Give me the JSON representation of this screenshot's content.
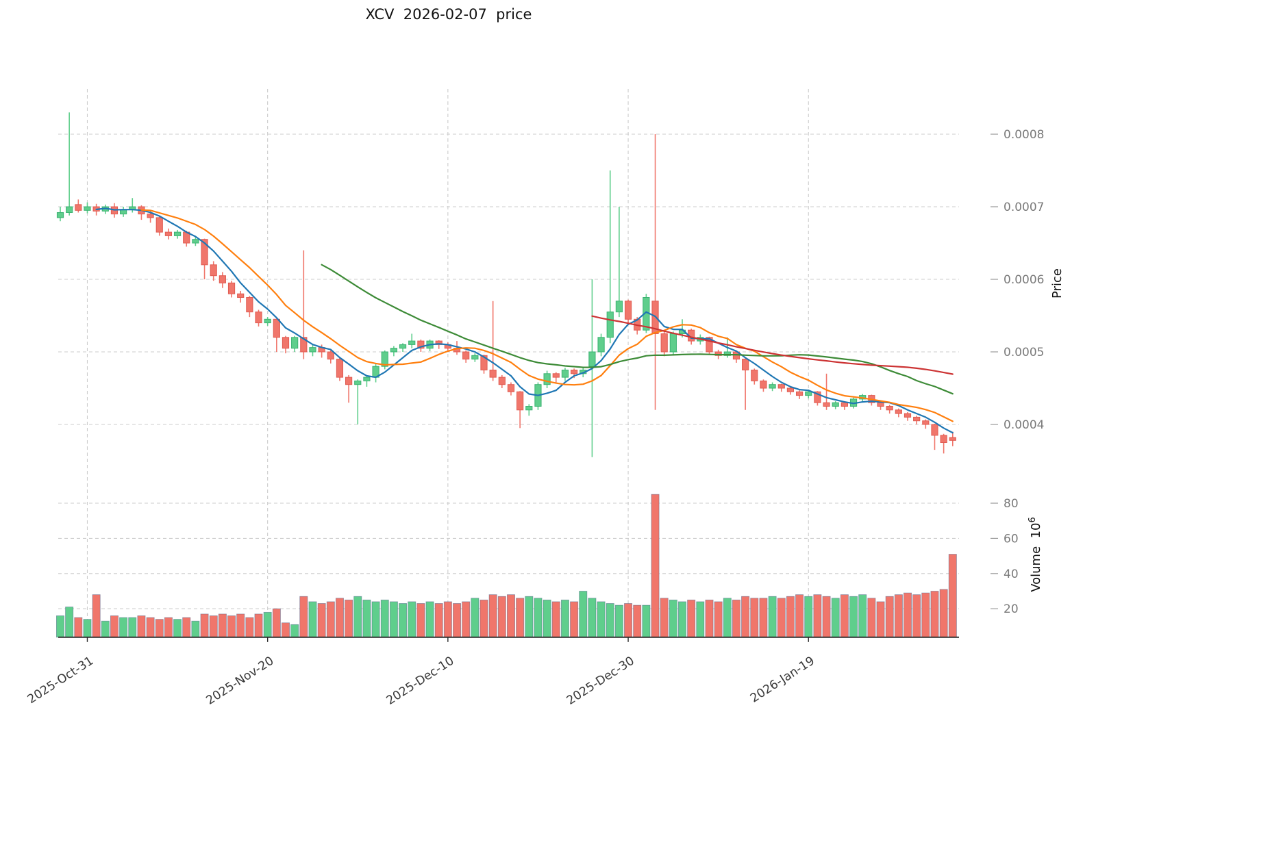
{
  "title": "XCV  2026-02-07  price",
  "chart_data": {
    "type": "candlestick",
    "title": "XCV  2026-02-07  price",
    "panels": [
      "price",
      "volume"
    ],
    "x_axis": {
      "tick_labels": [
        "2025-Oct-31",
        "2025-Nov-20",
        "2025-Dec-10",
        "2025-Dec-30",
        "2026-Jan-19"
      ],
      "tick_indices": [
        3,
        23,
        43,
        63,
        83
      ]
    },
    "price_axis": {
      "label": "Price",
      "ticks": [
        0.0004,
        0.0005,
        0.0006,
        0.0007,
        0.0008
      ],
      "tick_labels": [
        "0.0004",
        "0.0005",
        "0.0006",
        "0.0007",
        "0.0008"
      ],
      "range": [
        0.000345,
        0.00086
      ]
    },
    "volume_axis": {
      "label_main": "Volume  10",
      "label_exp": "6",
      "unit": "millions",
      "ticks": [
        20,
        40,
        60,
        80
      ],
      "tick_labels": [
        "20",
        "40",
        "60",
        "80"
      ],
      "range": [
        0,
        90
      ]
    },
    "colors": {
      "up": "#5fce8c",
      "down": "#f0766b",
      "up_edge": "#3bb271",
      "down_edge": "#e05c52",
      "volume_edge": "#4a6087",
      "grid": "#cccccc",
      "axis_line": "#2b2b2b"
    },
    "moving_averages": [
      {
        "name": "MA5",
        "window": 5,
        "color": "#1f77b4"
      },
      {
        "name": "MA10",
        "window": 10,
        "color": "#ff7f0e"
      },
      {
        "name": "MA30",
        "window": 30,
        "color": "#3d8b37"
      },
      {
        "name": "MA60",
        "window": 60,
        "color": "#cc3333"
      }
    ],
    "candles": {
      "format": [
        "open",
        "high",
        "low",
        "close",
        "volume_millions"
      ],
      "rows": [
        [
          0.000685,
          0.0007,
          0.00068,
          0.000692,
          16
        ],
        [
          0.000692,
          0.00083,
          0.000688,
          0.0007,
          21
        ],
        [
          0.000703,
          0.00071,
          0.000692,
          0.000695,
          15
        ],
        [
          0.000695,
          0.000706,
          0.000691,
          0.0007,
          14
        ],
        [
          0.0007,
          0.000704,
          0.000688,
          0.000694,
          28
        ],
        [
          0.000694,
          0.000703,
          0.00069,
          0.0007,
          13
        ],
        [
          0.0007,
          0.000705,
          0.000685,
          0.00069,
          16
        ],
        [
          0.00069,
          0.0007,
          0.000686,
          0.000696,
          15
        ],
        [
          0.000696,
          0.000712,
          0.000692,
          0.0007,
          15
        ],
        [
          0.0007,
          0.000702,
          0.000682,
          0.00069,
          16
        ],
        [
          0.00069,
          0.000694,
          0.000678,
          0.000685,
          15
        ],
        [
          0.000685,
          0.000687,
          0.00066,
          0.000665,
          14
        ],
        [
          0.000665,
          0.00067,
          0.000655,
          0.00066,
          15
        ],
        [
          0.00066,
          0.000668,
          0.000656,
          0.000665,
          14
        ],
        [
          0.000665,
          0.000667,
          0.000645,
          0.00065,
          15
        ],
        [
          0.00065,
          0.000658,
          0.000646,
          0.000655,
          13
        ],
        [
          0.000655,
          0.000656,
          0.0006,
          0.00062,
          17
        ],
        [
          0.00062,
          0.000625,
          0.000598,
          0.000605,
          16
        ],
        [
          0.000605,
          0.00061,
          0.000588,
          0.000595,
          17
        ],
        [
          0.000595,
          0.000598,
          0.000575,
          0.00058,
          16
        ],
        [
          0.00058,
          0.000584,
          0.000568,
          0.000575,
          17
        ],
        [
          0.000575,
          0.000577,
          0.000548,
          0.000555,
          15
        ],
        [
          0.000555,
          0.000558,
          0.000535,
          0.00054,
          17
        ],
        [
          0.00054,
          0.000548,
          0.000536,
          0.000545,
          18
        ],
        [
          0.000545,
          0.000546,
          0.0005,
          0.00052,
          20
        ],
        [
          0.00052,
          0.000522,
          0.000498,
          0.000505,
          12
        ],
        [
          0.000505,
          0.000522,
          0.0005,
          0.00052,
          11
        ],
        [
          0.00052,
          0.00064,
          0.00049,
          0.0005,
          27
        ],
        [
          0.0005,
          0.00051,
          0.000494,
          0.000506,
          24
        ],
        [
          0.000506,
          0.00051,
          0.000492,
          0.0005,
          23
        ],
        [
          0.0005,
          0.000502,
          0.000484,
          0.00049,
          24
        ],
        [
          0.00049,
          0.000492,
          0.00046,
          0.000465,
          26
        ],
        [
          0.000465,
          0.000468,
          0.00043,
          0.000455,
          25
        ],
        [
          0.000455,
          0.000462,
          0.0004,
          0.00046,
          27
        ],
        [
          0.00046,
          0.000468,
          0.000452,
          0.000465,
          25
        ],
        [
          0.000465,
          0.000484,
          0.000458,
          0.00048,
          24
        ],
        [
          0.00048,
          0.000502,
          0.000476,
          0.0005,
          25
        ],
        [
          0.0005,
          0.000508,
          0.000494,
          0.000505,
          24
        ],
        [
          0.000505,
          0.000512,
          0.0005,
          0.00051,
          23
        ],
        [
          0.00051,
          0.000525,
          0.000505,
          0.000515,
          24
        ],
        [
          0.000515,
          0.000517,
          0.0005,
          0.000505,
          23
        ],
        [
          0.000505,
          0.000517,
          0.000501,
          0.000515,
          24
        ],
        [
          0.000515,
          0.000516,
          0.000504,
          0.00051,
          23
        ],
        [
          0.00051,
          0.000513,
          0.0005,
          0.000505,
          24
        ],
        [
          0.000505,
          0.000515,
          0.000496,
          0.0005,
          23
        ],
        [
          0.0005,
          0.000502,
          0.000485,
          0.00049,
          24
        ],
        [
          0.00049,
          0.000498,
          0.000486,
          0.000495,
          26
        ],
        [
          0.000495,
          0.000496,
          0.00047,
          0.000475,
          25
        ],
        [
          0.000475,
          0.00057,
          0.00046,
          0.000465,
          28
        ],
        [
          0.000465,
          0.000468,
          0.00045,
          0.000455,
          27
        ],
        [
          0.000455,
          0.000458,
          0.00044,
          0.000445,
          28
        ],
        [
          0.000445,
          0.000446,
          0.000395,
          0.00042,
          26
        ],
        [
          0.00042,
          0.000428,
          0.000412,
          0.000425,
          27
        ],
        [
          0.000425,
          0.000458,
          0.00042,
          0.000455,
          26
        ],
        [
          0.000455,
          0.000474,
          0.00045,
          0.00047,
          25
        ],
        [
          0.00047,
          0.000472,
          0.000458,
          0.000465,
          24
        ],
        [
          0.000465,
          0.000478,
          0.00046,
          0.000475,
          25
        ],
        [
          0.000475,
          0.000477,
          0.000464,
          0.00047,
          24
        ],
        [
          0.00047,
          0.000478,
          0.000465,
          0.000475,
          30
        ],
        [
          0.00048,
          0.0006,
          0.000355,
          0.0005,
          26
        ],
        [
          0.0005,
          0.000525,
          0.000494,
          0.00052,
          24
        ],
        [
          0.00052,
          0.00075,
          0.000512,
          0.000555,
          23
        ],
        [
          0.000555,
          0.0007,
          0.000548,
          0.00057,
          22
        ],
        [
          0.00057,
          0.000572,
          0.000538,
          0.000545,
          23
        ],
        [
          0.000545,
          0.000548,
          0.000524,
          0.00053,
          22
        ],
        [
          0.00053,
          0.00058,
          0.000526,
          0.000575,
          22
        ],
        [
          0.00057,
          0.0008,
          0.00042,
          0.000525,
          85
        ],
        [
          0.000525,
          0.000528,
          0.000494,
          0.0005,
          26
        ],
        [
          0.0005,
          0.000528,
          0.000496,
          0.000525,
          25
        ],
        [
          0.000525,
          0.000545,
          0.00052,
          0.00053,
          24
        ],
        [
          0.00053,
          0.000532,
          0.00051,
          0.000515,
          25
        ],
        [
          0.000515,
          0.000524,
          0.00051,
          0.00052,
          24
        ],
        [
          0.00052,
          0.000521,
          0.000496,
          0.0005,
          25
        ],
        [
          0.0005,
          0.000503,
          0.00049,
          0.000495,
          24
        ],
        [
          0.000495,
          0.00052,
          0.000492,
          0.0005,
          26
        ],
        [
          0.0005,
          0.000502,
          0.000485,
          0.00049,
          25
        ],
        [
          0.00049,
          0.000491,
          0.00042,
          0.000475,
          27
        ],
        [
          0.000475,
          0.000477,
          0.000455,
          0.00046,
          26
        ],
        [
          0.00046,
          0.000462,
          0.000445,
          0.00045,
          26
        ],
        [
          0.00045,
          0.000458,
          0.000446,
          0.000455,
          27
        ],
        [
          0.000455,
          0.000456,
          0.000445,
          0.00045,
          26
        ],
        [
          0.00045,
          0.000452,
          0.000441,
          0.000445,
          27
        ],
        [
          0.000445,
          0.000447,
          0.000435,
          0.00044,
          28
        ],
        [
          0.00044,
          0.000448,
          0.000436,
          0.000445,
          27
        ],
        [
          0.000445,
          0.000446,
          0.000426,
          0.00043,
          28
        ],
        [
          0.00043,
          0.00047,
          0.00042,
          0.000425,
          27
        ],
        [
          0.000425,
          0.000432,
          0.000421,
          0.00043,
          26
        ],
        [
          0.00043,
          0.000431,
          0.00042,
          0.000425,
          28
        ],
        [
          0.000425,
          0.000437,
          0.000422,
          0.000435,
          27
        ],
        [
          0.000435,
          0.000442,
          0.000431,
          0.00044,
          28
        ],
        [
          0.00044,
          0.000441,
          0.000426,
          0.00043,
          26
        ],
        [
          0.00043,
          0.000432,
          0.00042,
          0.000425,
          24
        ],
        [
          0.000425,
          0.000427,
          0.000415,
          0.00042,
          27
        ],
        [
          0.00042,
          0.000422,
          0.00041,
          0.000415,
          28
        ],
        [
          0.000415,
          0.000417,
          0.000405,
          0.00041,
          29
        ],
        [
          0.00041,
          0.000412,
          0.0004,
          0.000405,
          28
        ],
        [
          0.000405,
          0.000407,
          0.000394,
          0.0004,
          29
        ],
        [
          0.0004,
          0.000401,
          0.000365,
          0.000385,
          30
        ],
        [
          0.000385,
          0.000387,
          0.00036,
          0.000375,
          31
        ],
        [
          0.000382,
          0.00039,
          0.00037,
          0.000378,
          51
        ]
      ]
    }
  }
}
